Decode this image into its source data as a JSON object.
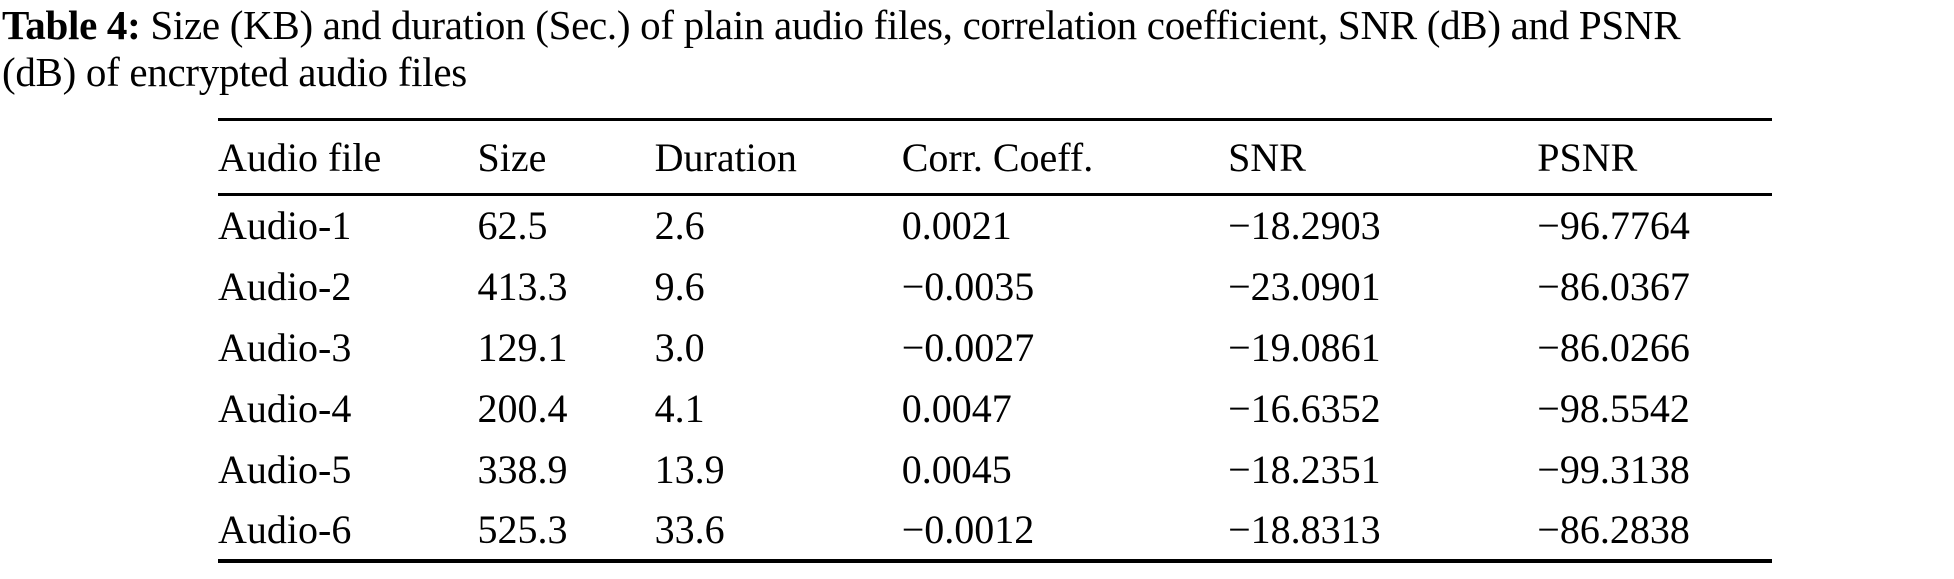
{
  "caption": {
    "label": "Table 4:",
    "line1_rest": " Size (KB) and duration (Sec.) of plain audio files, correlation coefficient, SNR (dB) and PSNR",
    "line2": "(dB) of encrypted audio files"
  },
  "table": {
    "headers": [
      "Audio file",
      "Size",
      "Duration",
      "Corr. Coeff.",
      "SNR",
      "PSNR"
    ],
    "rows": [
      [
        "Audio-1",
        "62.5",
        "2.6",
        "0.0021",
        "−18.2903",
        "−96.7764"
      ],
      [
        "Audio-2",
        "413.3",
        "9.6",
        "−0.0035",
        "−23.0901",
        "−86.0367"
      ],
      [
        "Audio-3",
        "129.1",
        "3.0",
        "−0.0027",
        "−19.0861",
        "−86.0266"
      ],
      [
        "Audio-4",
        "200.4",
        "4.1",
        "0.0047",
        "−16.6352",
        "−98.5542"
      ],
      [
        "Audio-5",
        "338.9",
        "13.9",
        "0.0045",
        "−18.2351",
        "−99.3138"
      ],
      [
        "Audio-6",
        "525.3",
        "33.6",
        "−0.0012",
        "−18.8313",
        "−86.2838"
      ]
    ]
  },
  "colors": {
    "text": "#000000",
    "background": "#ffffff",
    "rule": "#000000"
  }
}
